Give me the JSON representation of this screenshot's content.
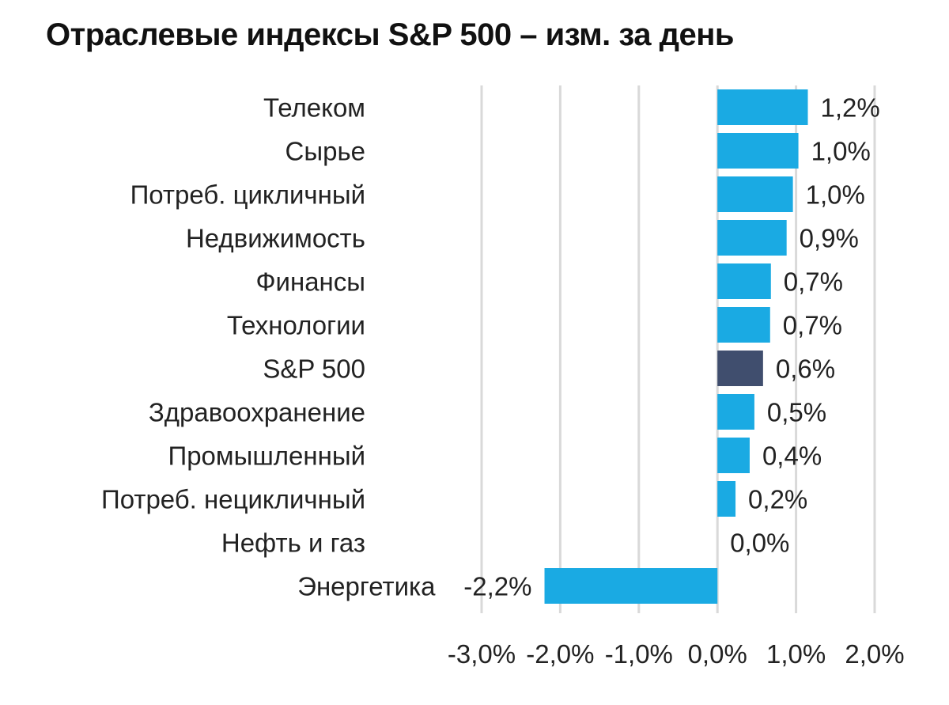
{
  "chart_data": {
    "type": "bar",
    "orientation": "horizontal",
    "title": "Отраслевые индексы S&P 500 – изм. за день",
    "xlabel": "",
    "ylabel": "",
    "xlim": [
      -3.0,
      2.0
    ],
    "x_ticks": [
      -3.0,
      -2.0,
      -1.0,
      0.0,
      1.0,
      2.0
    ],
    "x_tick_labels": [
      "-3,0%",
      "-2,0%",
      "-1,0%",
      "0,0%",
      "1,0%",
      "2,0%"
    ],
    "grid": "vertical",
    "legend": "none",
    "categories": [
      "Телеком",
      "Сырье",
      "Потреб. цикличный",
      "Недвижимость",
      "Финансы",
      "Технологии",
      "S&P 500",
      "Здравоохранение",
      "Промышленный",
      "Потреб. нецикличный",
      "Нефть и газ",
      "Энергетика"
    ],
    "values": [
      1.15,
      1.03,
      0.96,
      0.88,
      0.68,
      0.67,
      0.58,
      0.47,
      0.41,
      0.23,
      0.0,
      -2.2
    ],
    "value_labels": [
      "1,2%",
      "1,0%",
      "1,0%",
      "0,9%",
      "0,7%",
      "0,7%",
      "0,6%",
      "0,5%",
      "0,4%",
      "0,2%",
      "0,0%",
      "-2,2%"
    ],
    "highlight_category": "S&P 500",
    "colors": {
      "bar": "#1aaae3",
      "highlight": "#404e6e",
      "grid": "#d9d9d9"
    }
  }
}
